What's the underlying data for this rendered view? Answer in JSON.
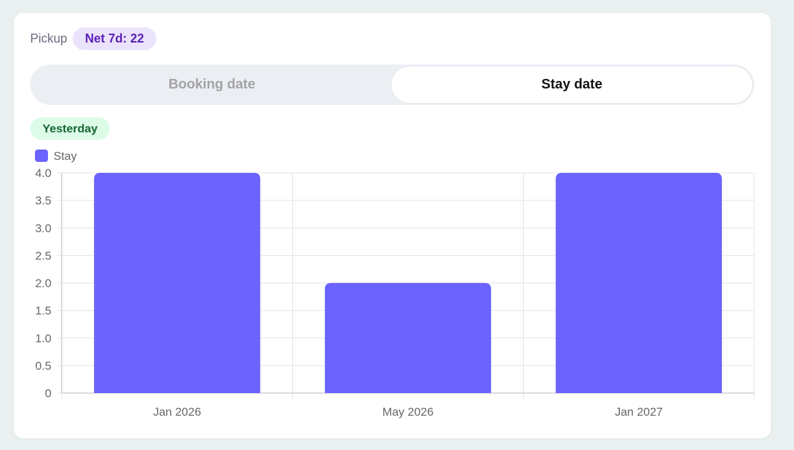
{
  "header": {
    "label": "Pickup",
    "net_badge": "Net 7d: 22"
  },
  "toggle": {
    "options": [
      "Booking date",
      "Stay date"
    ],
    "selected": "Stay date"
  },
  "period_badge": "Yesterday",
  "colors": {
    "bar": "#6c63ff",
    "grid": "#e3e3e6",
    "axis_text": "#666666",
    "accent_purple": "#5b21b6",
    "accent_green": "#166534"
  },
  "chart_data": {
    "type": "bar",
    "categories": [
      "Jan 2026",
      "May 2026",
      "Jan 2027"
    ],
    "series": [
      {
        "name": "Stay",
        "values": [
          4,
          2,
          4
        ]
      }
    ],
    "yticks": [
      "0",
      "0.5",
      "1.0",
      "1.5",
      "2.0",
      "2.5",
      "3.0",
      "3.5",
      "4.0"
    ],
    "ylim": [
      0,
      4
    ],
    "grid": true,
    "legend": "top-left"
  }
}
